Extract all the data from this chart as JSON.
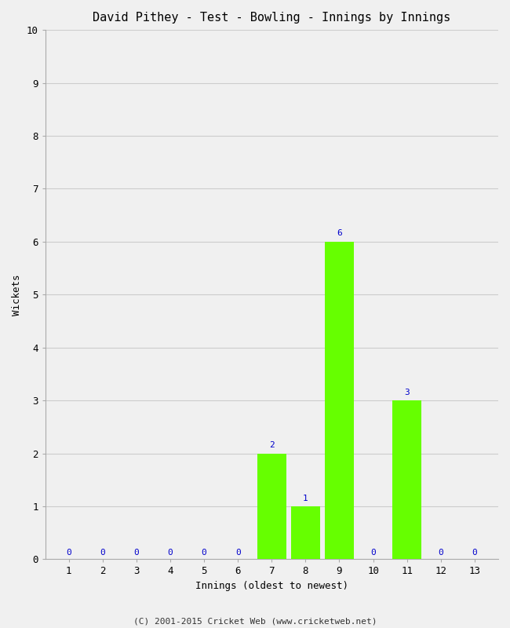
{
  "title": "David Pithey - Test - Bowling - Innings by Innings",
  "xlabel": "Innings (oldest to newest)",
  "ylabel": "Wickets",
  "innings": [
    1,
    2,
    3,
    4,
    5,
    6,
    7,
    8,
    9,
    10,
    11,
    12,
    13
  ],
  "wickets": [
    0,
    0,
    0,
    0,
    0,
    0,
    2,
    1,
    6,
    0,
    3,
    0,
    0
  ],
  "bar_color": "#66ff00",
  "zero_color": "#0000cc",
  "ylim": [
    0,
    10
  ],
  "yticks": [
    0,
    1,
    2,
    3,
    4,
    5,
    6,
    7,
    8,
    9,
    10
  ],
  "xticks": [
    1,
    2,
    3,
    4,
    5,
    6,
    7,
    8,
    9,
    10,
    11,
    12,
    13
  ],
  "background_color": "#f0f0f0",
  "grid_color": "#cccccc",
  "footer": "(C) 2001-2015 Cricket Web (www.cricketweb.net)",
  "title_fontsize": 11,
  "label_fontsize": 9,
  "annotation_fontsize": 8,
  "footer_fontsize": 8,
  "bar_width": 0.85
}
